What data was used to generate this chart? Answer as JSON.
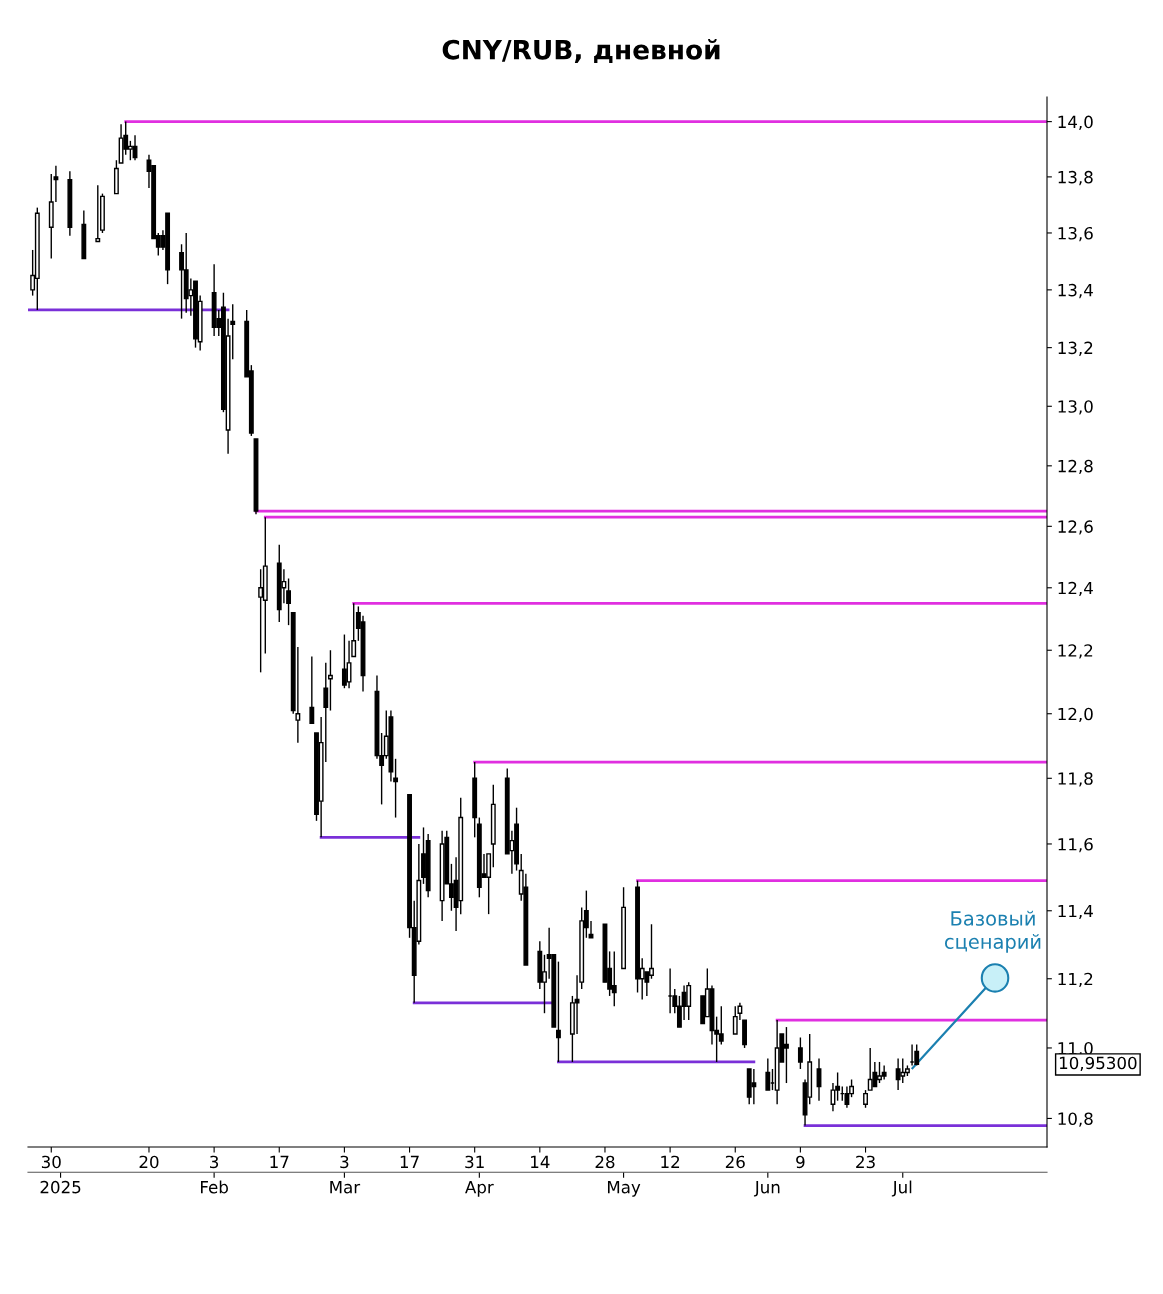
{
  "chart_data": {
    "type": "candlestick",
    "title": "CNY/RUB, дневной",
    "x": [
      "2024-12-26",
      "2024-12-27",
      "2024-12-30",
      "2024-12-31",
      "2025-01-03",
      "2025-01-06",
      "2025-01-09",
      "2025-01-10",
      "2025-01-13",
      "2025-01-14",
      "2025-01-15",
      "2025-01-16",
      "2025-01-17",
      "2025-01-20",
      "2025-01-21",
      "2025-01-22",
      "2025-01-23",
      "2025-01-24",
      "2025-01-27",
      "2025-01-28",
      "2025-01-29",
      "2025-01-30",
      "2025-01-31",
      "2025-02-03",
      "2025-02-04",
      "2025-02-05",
      "2025-02-06",
      "2025-02-07",
      "2025-02-10",
      "2025-02-11",
      "2025-02-12",
      "2025-02-13",
      "2025-02-14",
      "2025-02-17",
      "2025-02-18",
      "2025-02-19",
      "2025-02-20",
      "2025-02-21",
      "2025-02-24",
      "2025-02-25",
      "2025-02-26",
      "2025-02-27",
      "2025-02-28",
      "2025-03-03",
      "2025-03-04",
      "2025-03-05",
      "2025-03-06",
      "2025-03-07",
      "2025-03-10",
      "2025-03-11",
      "2025-03-12",
      "2025-03-13",
      "2025-03-14",
      "2025-03-17",
      "2025-03-18",
      "2025-03-19",
      "2025-03-20",
      "2025-03-21",
      "2025-03-24",
      "2025-03-25",
      "2025-03-26",
      "2025-03-27",
      "2025-03-28",
      "2025-03-31",
      "2025-04-01",
      "2025-04-02",
      "2025-04-03",
      "2025-04-04",
      "2025-04-07",
      "2025-04-08",
      "2025-04-09",
      "2025-04-10",
      "2025-04-11",
      "2025-04-14",
      "2025-04-15",
      "2025-04-16",
      "2025-04-17",
      "2025-04-18",
      "2025-04-21",
      "2025-04-22",
      "2025-04-23",
      "2025-04-24",
      "2025-04-25",
      "2025-04-28",
      "2025-04-29",
      "2025-04-30",
      "2025-05-02",
      "2025-05-05",
      "2025-05-06",
      "2025-05-07",
      "2025-05-08",
      "2025-05-12",
      "2025-05-13",
      "2025-05-14",
      "2025-05-15",
      "2025-05-16",
      "2025-05-19",
      "2025-05-20",
      "2025-05-21",
      "2025-05-22",
      "2025-05-23",
      "2025-05-26",
      "2025-05-27",
      "2025-05-28",
      "2025-05-29",
      "2025-05-30",
      "2025-06-02",
      "2025-06-03",
      "2025-06-04",
      "2025-06-05",
      "2025-06-06",
      "2025-06-09",
      "2025-06-10",
      "2025-06-11",
      "2025-06-13",
      "2025-06-16",
      "2025-06-17",
      "2025-06-18",
      "2025-06-19",
      "2025-06-20",
      "2025-06-23",
      "2025-06-24",
      "2025-06-25",
      "2025-06-26",
      "2025-06-27",
      "2025-06-30",
      "2025-07-01",
      "2025-07-02",
      "2025-07-03",
      "2025-07-04"
    ],
    "ohlc": [
      [
        13.4,
        13.54,
        13.38,
        13.45
      ],
      [
        13.44,
        13.69,
        13.33,
        13.67
      ],
      [
        13.62,
        13.81,
        13.51,
        13.71
      ],
      [
        13.8,
        13.84,
        13.71,
        13.79
      ],
      [
        13.79,
        13.82,
        13.59,
        13.62
      ],
      [
        13.63,
        13.68,
        13.51,
        13.51
      ],
      [
        13.57,
        13.77,
        13.57,
        13.58
      ],
      [
        13.61,
        13.74,
        13.6,
        13.73
      ],
      [
        13.74,
        13.86,
        13.74,
        13.83
      ],
      [
        13.85,
        13.99,
        13.85,
        13.94
      ],
      [
        13.95,
        14.0,
        13.88,
        13.9
      ],
      [
        13.9,
        13.93,
        13.86,
        13.91
      ],
      [
        13.91,
        13.95,
        13.86,
        13.87
      ],
      [
        13.86,
        13.88,
        13.76,
        13.82
      ],
      [
        13.84,
        13.84,
        13.58,
        13.58
      ],
      [
        13.59,
        13.6,
        13.52,
        13.55
      ],
      [
        13.59,
        13.61,
        13.54,
        13.55
      ],
      [
        13.67,
        13.67,
        13.42,
        13.47
      ],
      [
        13.53,
        13.56,
        13.3,
        13.47
      ],
      [
        13.47,
        13.6,
        13.32,
        13.37
      ],
      [
        13.38,
        13.44,
        13.31,
        13.4
      ],
      [
        13.43,
        13.43,
        13.2,
        13.23
      ],
      [
        13.22,
        13.38,
        13.19,
        13.36
      ],
      [
        13.39,
        13.49,
        13.24,
        13.27
      ],
      [
        13.3,
        13.33,
        13.24,
        13.27
      ],
      [
        13.34,
        13.39,
        12.98,
        12.99
      ],
      [
        12.92,
        13.3,
        12.84,
        13.24
      ],
      [
        13.29,
        13.35,
        13.16,
        13.28
      ],
      [
        13.29,
        13.33,
        13.1,
        13.1
      ],
      [
        13.12,
        13.14,
        12.9,
        12.91
      ],
      [
        12.89,
        12.89,
        12.64,
        12.65
      ],
      [
        12.37,
        12.46,
        12.13,
        12.4
      ],
      [
        12.36,
        12.63,
        12.19,
        12.47
      ],
      [
        12.48,
        12.54,
        12.29,
        12.33
      ],
      [
        12.4,
        12.46,
        12.35,
        12.42
      ],
      [
        12.39,
        12.43,
        12.28,
        12.35
      ],
      [
        12.32,
        12.32,
        12.0,
        12.01
      ],
      [
        11.98,
        12.21,
        11.91,
        12.0
      ],
      [
        12.02,
        12.18,
        11.97,
        11.97
      ],
      [
        11.94,
        11.94,
        11.67,
        11.69
      ],
      [
        11.73,
        11.99,
        11.62,
        11.91
      ],
      [
        12.08,
        12.16,
        11.85,
        12.02
      ],
      [
        12.11,
        12.2,
        12.01,
        12.12
      ],
      [
        12.14,
        12.25,
        12.08,
        12.09
      ],
      [
        12.1,
        12.23,
        12.08,
        12.16
      ],
      [
        12.18,
        12.35,
        12.18,
        12.23
      ],
      [
        12.32,
        12.34,
        12.23,
        12.27
      ],
      [
        12.29,
        12.31,
        12.07,
        12.12
      ],
      [
        12.07,
        12.12,
        11.86,
        11.87
      ],
      [
        11.87,
        11.94,
        11.72,
        11.84
      ],
      [
        11.87,
        12.01,
        11.86,
        11.93
      ],
      [
        11.99,
        12.01,
        11.79,
        11.82
      ],
      [
        11.8,
        11.86,
        11.68,
        11.79
      ],
      [
        11.75,
        11.75,
        11.32,
        11.35
      ],
      [
        11.35,
        11.43,
        11.13,
        11.21
      ],
      [
        11.31,
        11.6,
        11.3,
        11.49
      ],
      [
        11.57,
        11.65,
        11.48,
        11.5
      ],
      [
        11.61,
        11.63,
        11.44,
        11.46
      ],
      [
        11.43,
        11.64,
        11.37,
        11.6
      ],
      [
        11.62,
        11.64,
        11.48,
        11.48
      ],
      [
        11.48,
        11.54,
        11.4,
        11.44
      ],
      [
        11.49,
        11.56,
        11.34,
        11.41
      ],
      [
        11.43,
        11.74,
        11.39,
        11.68
      ],
      [
        11.8,
        11.85,
        11.62,
        11.68
      ],
      [
        11.66,
        11.68,
        11.44,
        11.47
      ],
      [
        11.51,
        11.57,
        11.5,
        11.5
      ],
      [
        11.5,
        11.57,
        11.39,
        11.57
      ],
      [
        11.6,
        11.78,
        11.53,
        11.72
      ],
      [
        11.8,
        11.83,
        11.57,
        11.57
      ],
      [
        11.58,
        11.64,
        11.51,
        11.61
      ],
      [
        11.66,
        11.71,
        11.52,
        11.54
      ],
      [
        11.45,
        11.57,
        11.43,
        11.52
      ],
      [
        11.47,
        11.51,
        11.24,
        11.24
      ],
      [
        11.28,
        11.31,
        11.17,
        11.19
      ],
      [
        11.19,
        11.27,
        11.1,
        11.22
      ],
      [
        11.27,
        11.35,
        11.2,
        11.26
      ],
      [
        11.27,
        11.27,
        11.06,
        11.06
      ],
      [
        11.05,
        11.25,
        10.96,
        11.03
      ],
      [
        11.04,
        11.15,
        10.96,
        11.13
      ],
      [
        11.14,
        11.21,
        11.04,
        11.13
      ],
      [
        11.19,
        11.41,
        11.17,
        11.37
      ],
      [
        11.4,
        11.46,
        11.32,
        11.35
      ],
      [
        11.33,
        11.37,
        11.32,
        11.32
      ],
      [
        11.36,
        11.36,
        11.19,
        11.19
      ],
      [
        11.23,
        11.28,
        11.15,
        11.17
      ],
      [
        11.18,
        11.28,
        11.12,
        11.16
      ],
      [
        11.23,
        11.47,
        11.23,
        11.41
      ],
      [
        11.47,
        11.49,
        11.16,
        11.2
      ],
      [
        11.2,
        11.26,
        11.14,
        11.23
      ],
      [
        11.22,
        11.22,
        11.15,
        11.19
      ],
      [
        11.21,
        11.36,
        11.2,
        11.23
      ],
      [
        11.15,
        11.23,
        11.1,
        11.15
      ],
      [
        11.15,
        11.17,
        11.1,
        11.12
      ],
      [
        11.12,
        11.15,
        11.06,
        11.06
      ],
      [
        11.16,
        11.18,
        11.08,
        11.12
      ],
      [
        11.12,
        11.19,
        11.08,
        11.18
      ],
      [
        11.15,
        11.15,
        11.07,
        11.07
      ],
      [
        11.09,
        11.23,
        11.09,
        11.17
      ],
      [
        11.17,
        11.18,
        11.01,
        11.05
      ],
      [
        11.05,
        11.09,
        10.96,
        11.04
      ],
      [
        11.04,
        11.12,
        11.01,
        11.02
      ],
      [
        11.04,
        11.12,
        11.04,
        11.09
      ],
      [
        11.1,
        11.13,
        11.08,
        11.12
      ],
      [
        11.08,
        11.08,
        11.0,
        11.01
      ],
      [
        10.94,
        10.94,
        10.84,
        10.86
      ],
      [
        10.9,
        10.94,
        10.84,
        10.89
      ],
      [
        10.93,
        10.97,
        10.88,
        10.88
      ],
      [
        10.9,
        10.94,
        10.88,
        10.9
      ],
      [
        10.88,
        11.08,
        10.84,
        11.0
      ],
      [
        11.04,
        11.04,
        10.96,
        10.96
      ],
      [
        11.01,
        11.06,
        10.9,
        11.0
      ],
      [
        11.0,
        11.03,
        10.94,
        10.96
      ],
      [
        10.9,
        10.91,
        10.78,
        10.81
      ],
      [
        10.86,
        11.04,
        10.84,
        10.96
      ],
      [
        10.94,
        10.97,
        10.85,
        10.89
      ],
      [
        10.84,
        10.9,
        10.82,
        10.88
      ],
      [
        10.89,
        10.93,
        10.85,
        10.88
      ],
      [
        10.87,
        10.89,
        10.85,
        10.87
      ],
      [
        10.87,
        10.89,
        10.83,
        10.84
      ],
      [
        10.87,
        10.91,
        10.86,
        10.89
      ],
      [
        10.84,
        10.88,
        10.83,
        10.87
      ],
      [
        10.88,
        11.0,
        10.88,
        10.91
      ],
      [
        10.93,
        10.96,
        10.89,
        10.89
      ],
      [
        10.91,
        10.96,
        10.9,
        10.92
      ],
      [
        10.93,
        10.95,
        10.91,
        10.92
      ],
      [
        10.94,
        10.97,
        10.88,
        10.91
      ],
      [
        10.92,
        10.97,
        10.9,
        10.93
      ],
      [
        10.93,
        10.95,
        10.92,
        10.94
      ],
      [
        10.96,
        11.01,
        10.95,
        10.96
      ],
      [
        10.99,
        11.01,
        10.95,
        10.953
      ]
    ],
    "series": [
      {
        "type": "line",
        "color": "#e02fe0",
        "x": [
          "2025-01-15",
          "2025-08-01"
        ],
        "values": [
          14.0,
          14.0
        ]
      },
      {
        "type": "line",
        "color": "#e02fe0",
        "x": [
          "2025-02-12",
          "2025-08-01"
        ],
        "values": [
          12.65,
          12.65
        ]
      },
      {
        "type": "line",
        "color": "#e02fe0",
        "x": [
          "2025-02-14",
          "2025-08-01"
        ],
        "values": [
          12.63,
          12.63
        ]
      },
      {
        "type": "line",
        "color": "#e02fe0",
        "x": [
          "2025-03-05",
          "2025-08-01"
        ],
        "values": [
          12.35,
          12.35
        ]
      },
      {
        "type": "line",
        "color": "#e02fe0",
        "x": [
          "2025-03-31",
          "2025-08-01"
        ],
        "values": [
          11.85,
          11.85
        ]
      },
      {
        "type": "line",
        "color": "#e02fe0",
        "x": [
          "2025-05-05",
          "2025-08-01"
        ],
        "values": [
          11.49,
          11.49
        ]
      },
      {
        "type": "line",
        "color": "#e02fe0",
        "x": [
          "2025-06-04",
          "2025-08-01"
        ],
        "values": [
          11.08,
          11.08
        ]
      },
      {
        "type": "line",
        "color": "#7a30d8",
        "x": [
          "2024-12-25",
          "2025-02-06"
        ],
        "values": [
          13.33,
          13.33
        ]
      },
      {
        "type": "line",
        "color": "#7a30d8",
        "x": [
          "2025-02-26",
          "2025-03-19"
        ],
        "values": [
          11.62,
          11.62
        ]
      },
      {
        "type": "line",
        "color": "#7a30d8",
        "x": [
          "2025-03-18",
          "2025-04-17"
        ],
        "values": [
          11.13,
          11.13
        ]
      },
      {
        "type": "line",
        "color": "#7a30d8",
        "x": [
          "2025-04-18",
          "2025-05-30"
        ],
        "values": [
          10.96,
          10.96
        ]
      },
      {
        "type": "line",
        "color": "#7a30d8",
        "x": [
          "2025-06-10",
          "2025-08-01"
        ],
        "values": [
          10.78,
          10.78
        ]
      }
    ],
    "log": true,
    "ylim": [
      10.72,
      14.09
    ],
    "yticks": [
      {
        "value": 10.8,
        "label": "10,8"
      },
      {
        "value": 11.0,
        "label": "11,0"
      },
      {
        "value": 11.2,
        "label": "11,2"
      },
      {
        "value": 11.4,
        "label": "11,4"
      },
      {
        "value": 11.6,
        "label": "11,6"
      },
      {
        "value": 11.8,
        "label": "11,8"
      },
      {
        "value": 12.0,
        "label": "12,0"
      },
      {
        "value": 12.2,
        "label": "12,2"
      },
      {
        "value": 12.4,
        "label": "12,4"
      },
      {
        "value": 12.6,
        "label": "12,6"
      },
      {
        "value": 12.8,
        "label": "12,8"
      },
      {
        "value": 13.0,
        "label": "13,0"
      },
      {
        "value": 13.2,
        "label": "13,2"
      },
      {
        "value": 13.4,
        "label": "13,4"
      },
      {
        "value": 13.6,
        "label": "13,6"
      },
      {
        "value": 13.8,
        "label": "13,8"
      },
      {
        "value": 14.0,
        "label": "14,0"
      }
    ],
    "xlim": [
      "2024-12-25",
      "2025-08-01"
    ],
    "xticks": [
      {
        "value": "2024-12-30",
        "label": "30"
      },
      {
        "value": "2025-01-20",
        "label": "20"
      },
      {
        "value": "2025-02-03",
        "label": "3"
      },
      {
        "value": "2025-02-17",
        "label": "17"
      },
      {
        "value": "2025-03-03",
        "label": "3"
      },
      {
        "value": "2025-03-17",
        "label": "17"
      },
      {
        "value": "2025-03-31",
        "label": "31"
      },
      {
        "value": "2025-04-14",
        "label": "14"
      },
      {
        "value": "2025-04-28",
        "label": "28"
      },
      {
        "value": "2025-05-12",
        "label": "12"
      },
      {
        "value": "2025-05-26",
        "label": "26"
      },
      {
        "value": "2025-06-09",
        "label": "9"
      },
      {
        "value": "2025-06-23",
        "label": "23"
      }
    ],
    "x2lim": [
      "2024-12-25",
      "2025-08-01"
    ],
    "x2ticks": [
      {
        "value": "2025-01-01",
        "label": "2025"
      },
      {
        "value": "2025-02-03",
        "label": "Feb"
      },
      {
        "value": "2025-03-03",
        "label": "Mar"
      },
      {
        "value": "2025-04-01",
        "label": "Apr"
      },
      {
        "value": "2025-05-02",
        "label": "May"
      },
      {
        "value": "2025-06-02",
        "label": "Jun"
      },
      {
        "value": "2025-07-01",
        "label": "Jul"
      }
    ],
    "annotations": [
      "Базовый\nсценарий",
      "10,95300"
    ],
    "grid": false,
    "legend": false
  }
}
